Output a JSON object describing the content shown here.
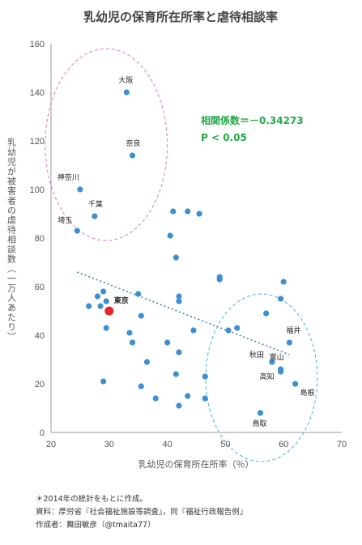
{
  "chart_data": {
    "type": "scatter",
    "title": "乳幼児の保育所在所率と虐待相談率",
    "xlabel": "乳幼児の保育所在所率（％）",
    "ylabel": "乳幼児が被害者の虐待相談数（一万人あたり）",
    "xlim": [
      20,
      70
    ],
    "ylim": [
      0,
      160
    ],
    "xticks": [
      20,
      30,
      40,
      50,
      60,
      70
    ],
    "yticks": [
      0,
      20,
      40,
      60,
      80,
      100,
      120,
      140,
      160
    ],
    "grid": false,
    "trendline": {
      "style": "dotted",
      "x": [
        24.5,
        61
      ],
      "y": [
        66,
        32
      ]
    },
    "highlight": {
      "label": "東京",
      "x": 30,
      "y": 50,
      "color": "#e8262a"
    },
    "labeled_points": [
      {
        "label": "大阪",
        "x": 33,
        "y": 140
      },
      {
        "label": "奈良",
        "x": 34,
        "y": 114
      },
      {
        "label": "神奈川",
        "x": 25,
        "y": 100
      },
      {
        "label": "千葉",
        "x": 27.5,
        "y": 89
      },
      {
        "label": "埼玉",
        "x": 24.5,
        "y": 83
      },
      {
        "label": "福井",
        "x": 61,
        "y": 37
      },
      {
        "label": "秋田",
        "x": 58,
        "y": 29
      },
      {
        "label": "富山",
        "x": 59.5,
        "y": 26
      },
      {
        "label": "高知",
        "x": 59.5,
        "y": 25
      },
      {
        "label": "島根",
        "x": 62,
        "y": 20
      },
      {
        "label": "鳥取",
        "x": 56,
        "y": 8
      }
    ],
    "points": [
      {
        "x": 26.5,
        "y": 52
      },
      {
        "x": 28,
        "y": 56
      },
      {
        "x": 28.5,
        "y": 52
      },
      {
        "x": 29,
        "y": 58
      },
      {
        "x": 29.5,
        "y": 54
      },
      {
        "x": 29.5,
        "y": 43
      },
      {
        "x": 29,
        "y": 21
      },
      {
        "x": 33.5,
        "y": 41
      },
      {
        "x": 34,
        "y": 37
      },
      {
        "x": 35,
        "y": 57
      },
      {
        "x": 35.5,
        "y": 48
      },
      {
        "x": 35.5,
        "y": 19
      },
      {
        "x": 36.5,
        "y": 29
      },
      {
        "x": 38,
        "y": 14
      },
      {
        "x": 40,
        "y": 37
      },
      {
        "x": 40.5,
        "y": 81
      },
      {
        "x": 41,
        "y": 91
      },
      {
        "x": 41.5,
        "y": 72
      },
      {
        "x": 42,
        "y": 56
      },
      {
        "x": 42,
        "y": 54
      },
      {
        "x": 42,
        "y": 33
      },
      {
        "x": 41.5,
        "y": 24
      },
      {
        "x": 42,
        "y": 11
      },
      {
        "x": 43.5,
        "y": 91
      },
      {
        "x": 43.5,
        "y": 15
      },
      {
        "x": 44.5,
        "y": 42
      },
      {
        "x": 45.5,
        "y": 90
      },
      {
        "x": 46.5,
        "y": 23
      },
      {
        "x": 46.5,
        "y": 14
      },
      {
        "x": 49,
        "y": 64
      },
      {
        "x": 49,
        "y": 63
      },
      {
        "x": 50.5,
        "y": 42
      },
      {
        "x": 52,
        "y": 43
      },
      {
        "x": 57,
        "y": 49
      },
      {
        "x": 59.5,
        "y": 55
      },
      {
        "x": 60,
        "y": 62
      }
    ],
    "ellipses": [
      {
        "color": "#e377c2",
        "cx": 29.5,
        "cy": 118.5,
        "rx": 10.5,
        "ry": 39.5
      },
      {
        "color": "#40b4e5",
        "cx": 56.2,
        "cy": 22.5,
        "rx": 9.6,
        "ry": 34.5
      }
    ],
    "annotations": [
      "相関係数＝－0.34273",
      "P < 0.05"
    ],
    "annotation_color": "#22a84a"
  },
  "notes": [
    "＊2014年の統計をもとに作成。",
    "資料：厚労省『社会福祉施設等調査』，同『福祉行政報告例』",
    "作成者：舞田敏彦（@tmaita77）"
  ]
}
